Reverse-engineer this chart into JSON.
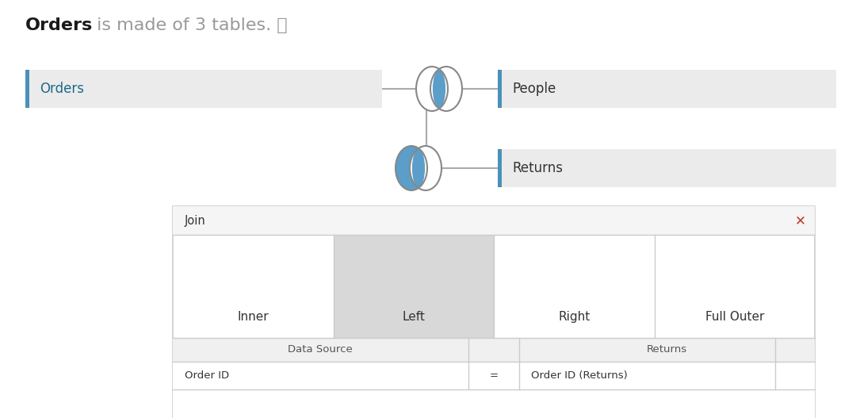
{
  "title_bold": "Orders",
  "title_rest": " is made of 3 tables. ⓘ",
  "title_bold_color": "#1a1a1a",
  "title_rest_color": "#999999",
  "title_fontsize": 16,
  "bg_color": "#ffffff",
  "light_gray": "#ebebeb",
  "mid_gray": "#d4d4d4",
  "blue_fill": "#5b9ec9",
  "blue_accent": "#4a90b8",
  "orders_label": "Orders",
  "people_label": "People",
  "returns_label": "Returns",
  "join_label": "Join",
  "inner_label": "Inner",
  "left_label": "Left",
  "right_label": "Right",
  "full_outer_label": "Full Outer",
  "data_source_label": "Data Source",
  "returns_col_label": "Returns",
  "order_id_label": "Order ID",
  "equals_label": "=",
  "order_id_returns_label": "Order ID (Returns)",
  "close_color": "#c0392b",
  "label_fontsize": 12,
  "small_fontsize": 11,
  "connector_color": "#aaaaaa",
  "outline_color": "#888888",
  "dialog_bg": "#ffffff",
  "dialog_border": "#cccccc",
  "dialog_header_bg": "#f5f5f5",
  "selected_bg": "#d8d8d8",
  "table_header_bg": "#f0f0f0"
}
